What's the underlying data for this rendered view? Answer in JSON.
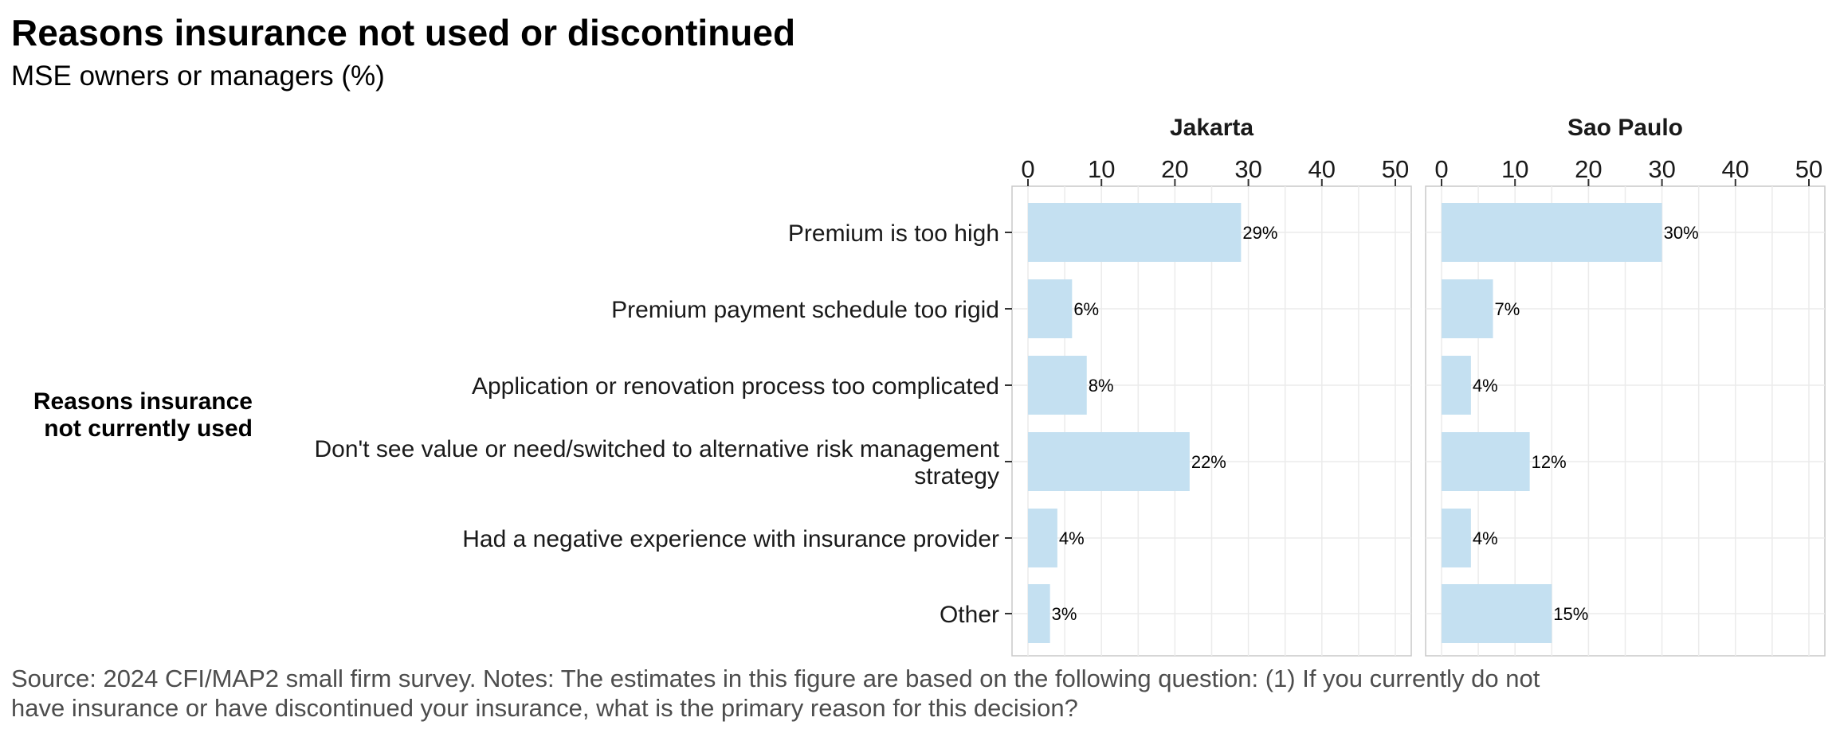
{
  "title": "Reasons insurance not used or discontinued",
  "subtitle": "MSE owners or managers (%)",
  "source": [
    "Source: 2024 CFI/MAP2 small firm survey. Notes: The estimates in this figure are based on the following question: (1) If you currently do not",
    "have insurance or have discontinued your insurance, what is the primary reason for this decision?"
  ],
  "chart_data": {
    "type": "bar",
    "orientation": "horizontal",
    "title": "Reasons insurance not used or discontinued",
    "subtitle": "MSE owners or managers (%)",
    "row_group_label": [
      "Reasons insurance",
      "not currently used"
    ],
    "categories": [
      [
        "Premium is too high"
      ],
      [
        "Premium payment schedule too rigid"
      ],
      [
        "Application or renovation process too complicated"
      ],
      [
        "Don't see value or need/switched to alternative risk management",
        "strategy"
      ],
      [
        "Had a negative experience with insurance provider"
      ],
      [
        "Other"
      ]
    ],
    "xlim": [
      0,
      50
    ],
    "xticks": [
      0,
      10,
      20,
      30,
      40,
      50
    ],
    "panels": [
      {
        "name": "Jakarta",
        "values": [
          29,
          6,
          8,
          22,
          4,
          3
        ],
        "labels": [
          "29%",
          "6%",
          "8%",
          "22%",
          "4%",
          "3%"
        ]
      },
      {
        "name": "Sao Paulo",
        "values": [
          30,
          7,
          4,
          12,
          4,
          15
        ],
        "labels": [
          "30%",
          "7%",
          "4%",
          "12%",
          "4%",
          "15%"
        ]
      }
    ],
    "bar_color": "#c4e0f1",
    "grid": true,
    "legend": "none"
  }
}
